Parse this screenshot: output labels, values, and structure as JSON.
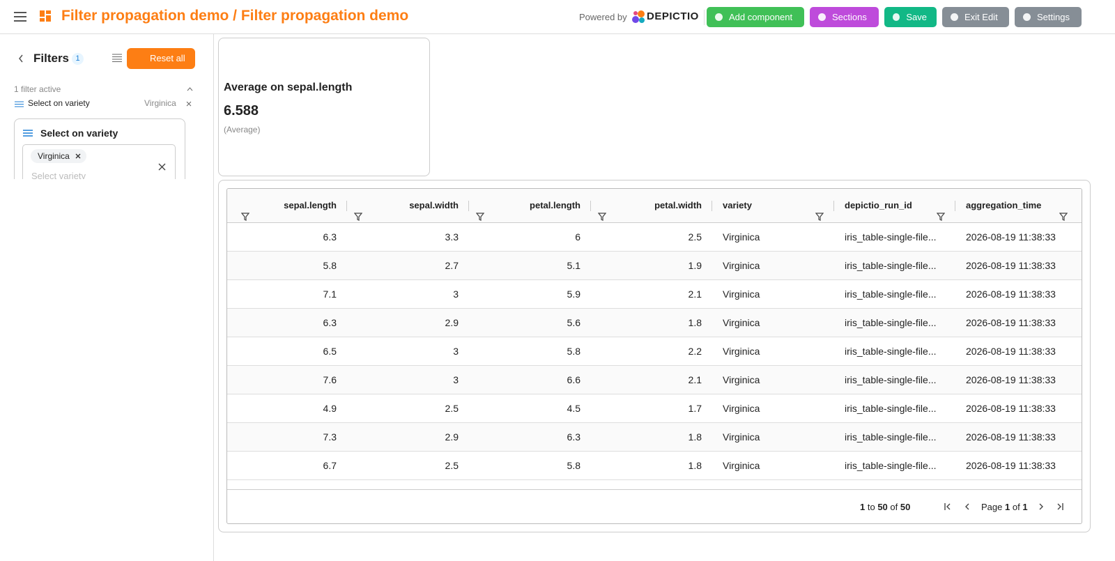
{
  "header": {
    "title": "Filter propagation demo / Filter propagation demo",
    "powered_by": "Powered by",
    "brand": "DEPICTIO",
    "buttons": [
      {
        "label": "Add component",
        "color": "#40c057"
      },
      {
        "label": "Sections",
        "color": "#be4bdb"
      },
      {
        "label": "Save",
        "color": "#12b886"
      },
      {
        "label": "Exit Edit",
        "color": "#868e96"
      },
      {
        "label": "Settings",
        "color": "#868e96"
      }
    ]
  },
  "sidebar": {
    "title": "Filters",
    "count": 1,
    "reset": "Reset all",
    "active_summary": "1 filter active",
    "active_filters": [
      {
        "label": "Select on variety",
        "value": "Virginica"
      }
    ],
    "filter_card": {
      "title": "Select on variety",
      "chips": [
        "Virginica"
      ],
      "placeholder": "Select variety"
    }
  },
  "metric_card": {
    "title": "Average on sepal.length",
    "value": 6.588,
    "note": "(Average)"
  },
  "table": {
    "columns": [
      {
        "name": "sepal.length",
        "align": "right"
      },
      {
        "name": "sepal.width",
        "align": "right"
      },
      {
        "name": "petal.length",
        "align": "right"
      },
      {
        "name": "petal.width",
        "align": "right"
      },
      {
        "name": "variety",
        "align": "left"
      },
      {
        "name": "depictio_run_id",
        "align": "left"
      },
      {
        "name": "aggregation_time",
        "align": "left"
      }
    ],
    "rows": [
      [
        6.3,
        3.3,
        6,
        2.5,
        "Virginica",
        "iris_table-single-file...",
        "2026-08-19 11:38:33"
      ],
      [
        5.8,
        2.7,
        5.1,
        1.9,
        "Virginica",
        "iris_table-single-file...",
        "2026-08-19 11:38:33"
      ],
      [
        7.1,
        3,
        5.9,
        2.1,
        "Virginica",
        "iris_table-single-file...",
        "2026-08-19 11:38:33"
      ],
      [
        6.3,
        2.9,
        5.6,
        1.8,
        "Virginica",
        "iris_table-single-file...",
        "2026-08-19 11:38:33"
      ],
      [
        6.5,
        3,
        5.8,
        2.2,
        "Virginica",
        "iris_table-single-file...",
        "2026-08-19 11:38:33"
      ],
      [
        7.6,
        3,
        6.6,
        2.1,
        "Virginica",
        "iris_table-single-file...",
        "2026-08-19 11:38:33"
      ],
      [
        4.9,
        2.5,
        4.5,
        1.7,
        "Virginica",
        "iris_table-single-file...",
        "2026-08-19 11:38:33"
      ],
      [
        7.3,
        2.9,
        6.3,
        1.8,
        "Virginica",
        "iris_table-single-file...",
        "2026-08-19 11:38:33"
      ],
      [
        6.7,
        2.5,
        5.8,
        1.8,
        "Virginica",
        "iris_table-single-file...",
        "2026-08-19 11:38:33"
      ]
    ],
    "pagination": {
      "from": 1,
      "to_word": "to",
      "to": 50,
      "of_word": "of",
      "total": 50,
      "page_word": "Page",
      "page": 1,
      "page_of_word": "of",
      "pages": 1
    }
  }
}
